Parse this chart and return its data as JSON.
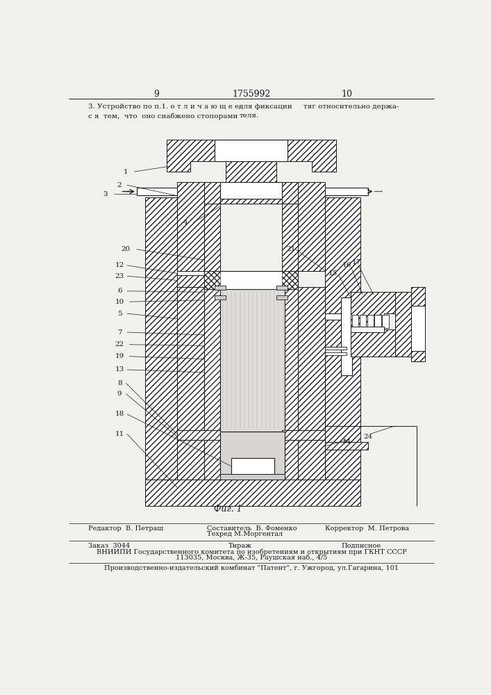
{
  "bg_color": "#f2f0ec",
  "lc": "#1a1a1a",
  "hc": "#2a2a2a",
  "page_number_left": "9",
  "page_number_center": "1755992",
  "page_number_right": "10",
  "header_text_col1": "3. Устройство по п.1. о т л и ч а ю щ е е-\nс я  тем,  что  оно снабжено стопорами",
  "header_text_col2": "для фиксации\nтеля.",
  "header_text_col3": "тяг относительно держа-",
  "fig_caption": "Фиг. 1",
  "footer_line1_col1": "Редактор  В. Петраш",
  "footer_line1_col2_a": "Составитель  В. Фоменко",
  "footer_line1_col2_b": "Техред М.Моргентал",
  "footer_line1_col3": "Корректор  М. Петрова",
  "footer_line2_col1": "Заказ  3044",
  "footer_line2_col2": "Тираж",
  "footer_line2_col3": "Подписное",
  "footer_line3": "ВНИИПИ Государственного комитета по изобретениям и открытиям при ГКНТ СССР",
  "footer_line4": "113035, Москва, Ж-35, Раушская наб., 4/5",
  "footer_line5": "Производственно-издательский комбинат \"Патент\", г. Ужгород, ул.Гагарина, 101"
}
